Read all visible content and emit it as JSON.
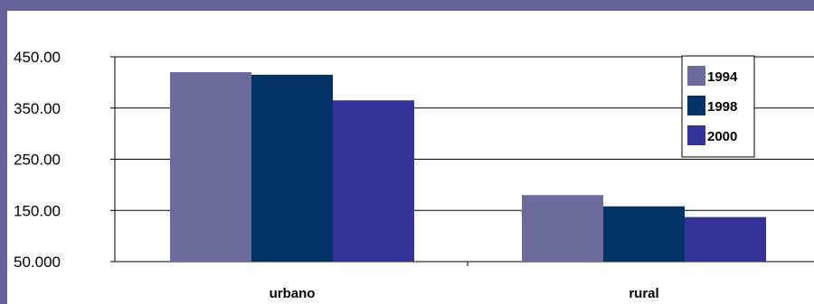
{
  "chart_data": {
    "type": "bar",
    "categories": [
      "urbano",
      "rural"
    ],
    "series": [
      {
        "name": "1994",
        "values": [
          420,
          180
        ]
      },
      {
        "name": "1998",
        "values": [
          415,
          158
        ]
      },
      {
        "name": "2000",
        "values": [
          365,
          137
        ]
      }
    ],
    "y_ticks": [
      "450.00",
      "350.00",
      "250.00",
      "150.00",
      "50.000"
    ],
    "ylim": [
      50,
      450
    ],
    "colors": [
      "#6b6b9c",
      "#033366",
      "#33339a"
    ],
    "grid": true,
    "legend_position": "top-right"
  }
}
